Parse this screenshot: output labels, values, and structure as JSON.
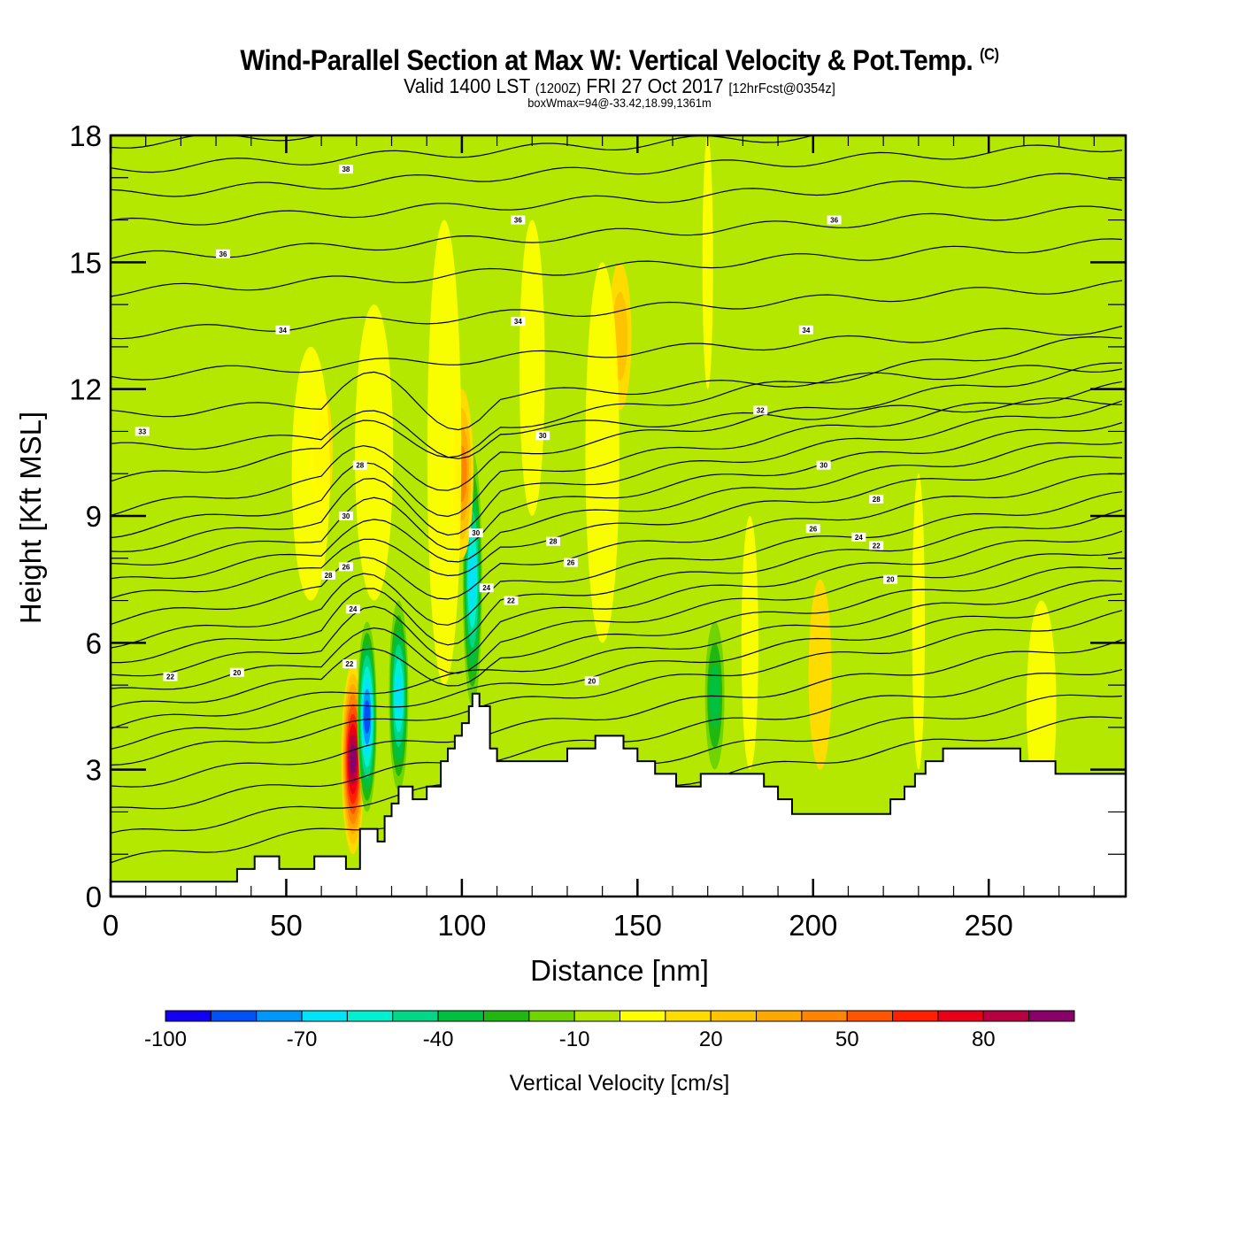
{
  "header": {
    "title": "Wind-Parallel Section at Max W: Vertical Velocity & Pot.Temp.",
    "copyright": "(C)",
    "valid_prefix": "Valid 1400 LST",
    "valid_utc": "(1200Z)",
    "valid_date": "FRI 27 Oct 2017",
    "forecast": "[12hrFcst@0354z]",
    "box_info": "boxWmax=94@-33.42,18.99,1361m"
  },
  "chart_data": {
    "type": "heatmap",
    "title": "Wind-Parallel Section at Max W: Vertical Velocity & Pot.Temp.",
    "xlabel": "Distance [nm]",
    "ylabel": "Height [Kft MSL]",
    "xlim": [
      0,
      289
    ],
    "ylim": [
      0,
      18
    ],
    "x_ticks": [
      0,
      50,
      100,
      150,
      200,
      250
    ],
    "y_ticks": [
      0,
      3,
      6,
      9,
      12,
      15,
      18
    ],
    "colorbar": {
      "label": "Vertical Velocity [cm/s]",
      "levels": [
        -100,
        -90,
        -80,
        -70,
        -60,
        -50,
        -40,
        -30,
        -20,
        -10,
        0,
        10,
        20,
        30,
        40,
        50,
        60,
        70,
        80,
        90,
        100
      ],
      "tick_labels": [
        "-100",
        "-70",
        "-40",
        "-10",
        "20",
        "50",
        "80"
      ],
      "tick_values": [
        -100,
        -70,
        -40,
        -10,
        20,
        50,
        80
      ],
      "colors": [
        "#1400f0",
        "#0050f8",
        "#0098f8",
        "#00e4f8",
        "#00f0d0",
        "#00d888",
        "#00c040",
        "#20b810",
        "#70d400",
        "#b4e800",
        "#ffff00",
        "#ffdc00",
        "#ffc400",
        "#ffa800",
        "#ff8400",
        "#ff5400",
        "#ff2000",
        "#e80018",
        "#b80040",
        "#880068"
      ]
    },
    "background_value_color": "#b4e800",
    "terrain_color": "#ffffff",
    "terrain_profile": {
      "x": [
        0,
        36,
        36,
        41,
        41,
        48,
        48,
        58,
        58,
        67,
        67,
        71,
        71,
        73,
        73,
        76,
        76,
        78,
        78,
        80,
        80,
        82,
        82,
        86,
        86,
        90,
        90,
        94,
        94,
        96,
        96,
        98,
        98,
        100,
        100,
        102,
        102,
        103,
        103,
        105,
        105,
        108,
        108,
        110,
        110,
        130,
        130,
        138,
        138,
        146,
        146,
        150,
        150,
        155,
        155,
        161,
        161,
        165,
        165,
        168,
        168,
        186,
        186,
        190,
        190,
        194,
        194,
        222,
        222,
        226,
        226,
        229,
        229,
        232,
        232,
        237,
        237,
        259,
        259,
        269,
        269,
        289
      ],
      "y": [
        0.35,
        0.35,
        0.65,
        0.65,
        0.95,
        0.95,
        0.65,
        0.65,
        0.95,
        0.95,
        0.65,
        0.65,
        1.6,
        1.6,
        1.6,
        1.6,
        1.3,
        1.3,
        1.9,
        1.9,
        2.2,
        2.2,
        2.6,
        2.6,
        2.3,
        2.3,
        2.6,
        2.6,
        3.2,
        3.2,
        3.5,
        3.5,
        3.8,
        3.8,
        4.1,
        4.1,
        4.5,
        4.5,
        4.8,
        4.8,
        4.5,
        4.5,
        3.5,
        3.5,
        3.2,
        3.2,
        3.5,
        3.5,
        3.8,
        3.8,
        3.5,
        3.5,
        3.2,
        3.2,
        2.9,
        2.9,
        2.6,
        2.6,
        2.6,
        2.6,
        2.9,
        2.9,
        2.6,
        2.6,
        2.3,
        2.3,
        1.95,
        1.95,
        2.3,
        2.3,
        2.6,
        2.6,
        2.9,
        2.9,
        3.2,
        3.2,
        3.5,
        3.5,
        3.2,
        3.2,
        2.9,
        2.9
      ]
    },
    "velocity_features": [
      {
        "name": "updraft-core",
        "x": 69,
        "y_min": 1.0,
        "y_max": 5.5,
        "value": 94
      },
      {
        "name": "downdraft-core",
        "x": 73,
        "y_min": 2.0,
        "y_max": 6.5,
        "value": -80
      },
      {
        "name": "downdraft-band",
        "x": 82,
        "y_min": 2.5,
        "y_max": 7.0,
        "value": -60
      },
      {
        "name": "downdraft-band",
        "x": 103,
        "y_min": 4.5,
        "y_max": 10.5,
        "value": -60
      },
      {
        "name": "updraft-band",
        "x": 100,
        "y_min": 8.0,
        "y_max": 12.0,
        "value": 40
      },
      {
        "name": "updraft-band",
        "x": 60,
        "y_min": 9.0,
        "y_max": 12.0,
        "value": 25
      },
      {
        "name": "updraft-band",
        "x": 145,
        "y_min": 11.5,
        "y_max": 15.0,
        "value": 20
      },
      {
        "name": "downdraft-band",
        "x": 172,
        "y_min": 3.0,
        "y_max": 6.5,
        "value": -35
      },
      {
        "name": "updraft-band",
        "x": 202,
        "y_min": 3.0,
        "y_max": 7.5,
        "value": 15
      }
    ],
    "isentropes": {
      "label": "Pot.Temp.",
      "levels": [
        16,
        18,
        20,
        22,
        24,
        26,
        28,
        30,
        32,
        34,
        36,
        38
      ],
      "annotations": [
        {
          "text": "38",
          "x": 67,
          "y": 17.2
        },
        {
          "text": "36",
          "x": 116,
          "y": 16.0
        },
        {
          "text": "36",
          "x": 206,
          "y": 16.0
        },
        {
          "text": "36",
          "x": 32,
          "y": 15.2
        },
        {
          "text": "34",
          "x": 49,
          "y": 13.4
        },
        {
          "text": "34",
          "x": 116,
          "y": 13.6
        },
        {
          "text": "34",
          "x": 198,
          "y": 13.4
        },
        {
          "text": "33",
          "x": 9,
          "y": 11.0
        },
        {
          "text": "32",
          "x": 185,
          "y": 11.5
        },
        {
          "text": "30",
          "x": 123,
          "y": 10.9
        },
        {
          "text": "30",
          "x": 203,
          "y": 10.2
        },
        {
          "text": "28",
          "x": 71,
          "y": 10.2
        },
        {
          "text": "28",
          "x": 218,
          "y": 9.4
        },
        {
          "text": "30",
          "x": 67,
          "y": 9.0
        },
        {
          "text": "30",
          "x": 104,
          "y": 8.6
        },
        {
          "text": "28",
          "x": 126,
          "y": 8.4
        },
        {
          "text": "26",
          "x": 200,
          "y": 8.7
        },
        {
          "text": "26",
          "x": 131,
          "y": 7.9
        },
        {
          "text": "28",
          "x": 62,
          "y": 7.6
        },
        {
          "text": "26",
          "x": 67,
          "y": 7.8
        },
        {
          "text": "24",
          "x": 213,
          "y": 8.5
        },
        {
          "text": "22",
          "x": 218,
          "y": 8.3
        },
        {
          "text": "24",
          "x": 107,
          "y": 7.3
        },
        {
          "text": "22",
          "x": 114,
          "y": 7.0
        },
        {
          "text": "24",
          "x": 69,
          "y": 6.8
        },
        {
          "text": "20",
          "x": 222,
          "y": 7.5
        },
        {
          "text": "22",
          "x": 68,
          "y": 5.5
        },
        {
          "text": "22",
          "x": 17,
          "y": 5.2
        },
        {
          "text": "20",
          "x": 36,
          "y": 5.3
        },
        {
          "text": "20",
          "x": 137,
          "y": 5.1
        }
      ]
    }
  }
}
